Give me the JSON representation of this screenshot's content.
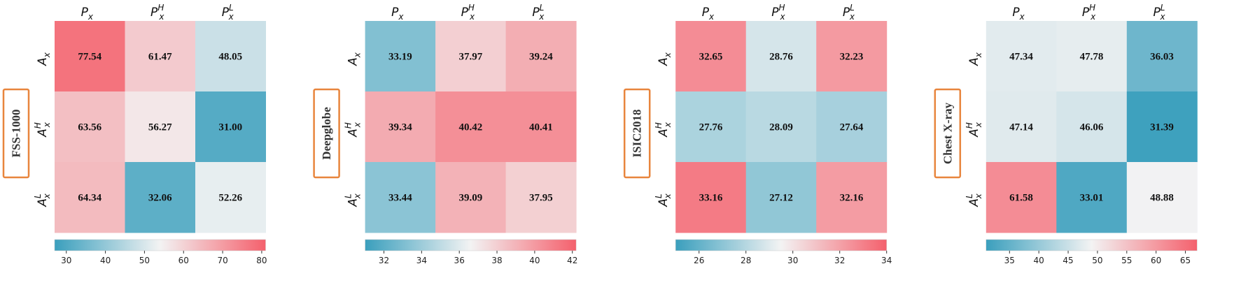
{
  "chart_data": [
    {
      "type": "heatmap",
      "panel_label": "FSS-1000",
      "x_categories": [
        [
          "P",
          "x",
          ""
        ],
        [
          "P",
          "x",
          "H"
        ],
        [
          "P",
          "x",
          "L"
        ]
      ],
      "y_categories": [
        [
          "A",
          "x",
          ""
        ],
        [
          "A",
          "x",
          "H"
        ],
        [
          "A",
          "x",
          "L"
        ]
      ],
      "values": [
        [
          77.54,
          61.47,
          48.05
        ],
        [
          63.56,
          56.27,
          31.0
        ],
        [
          64.34,
          32.06,
          52.26
        ]
      ],
      "colorbar": {
        "vmin": 27,
        "vmax": 81,
        "ticks": [
          30,
          40,
          50,
          60,
          70,
          80
        ]
      }
    },
    {
      "type": "heatmap",
      "panel_label": "Deepglobe",
      "x_categories": [
        [
          "P",
          "x",
          ""
        ],
        [
          "P",
          "x",
          "H"
        ],
        [
          "P",
          "x",
          "L"
        ]
      ],
      "y_categories": [
        [
          "A",
          "x",
          ""
        ],
        [
          "A",
          "x",
          "H"
        ],
        [
          "A",
          "x",
          "L"
        ]
      ],
      "values": [
        [
          33.19,
          37.97,
          39.24
        ],
        [
          39.34,
          40.42,
          40.41
        ],
        [
          33.44,
          39.09,
          37.95
        ]
      ],
      "colorbar": {
        "vmin": 31,
        "vmax": 42.2,
        "ticks": [
          32,
          34,
          36,
          38,
          40,
          42
        ]
      }
    },
    {
      "type": "heatmap",
      "panel_label": "ISIC2018",
      "x_categories": [
        [
          "P",
          "x",
          ""
        ],
        [
          "P",
          "x",
          "H"
        ],
        [
          "P",
          "x",
          "L"
        ]
      ],
      "y_categories": [
        [
          "A",
          "x",
          ""
        ],
        [
          "A",
          "x",
          "H"
        ],
        [
          "A",
          "x",
          "L"
        ]
      ],
      "values": [
        [
          32.65,
          28.76,
          32.23
        ],
        [
          27.76,
          28.09,
          27.64
        ],
        [
          33.16,
          27.12,
          32.16
        ]
      ],
      "colorbar": {
        "vmin": 25,
        "vmax": 34,
        "ticks": [
          26,
          28,
          30,
          32,
          34
        ]
      }
    },
    {
      "type": "heatmap",
      "panel_label": "Chest X-ray",
      "x_categories": [
        [
          "P",
          "x",
          ""
        ],
        [
          "P",
          "x",
          "H"
        ],
        [
          "P",
          "x",
          "L"
        ]
      ],
      "y_categories": [
        [
          "A",
          "x",
          ""
        ],
        [
          "A",
          "x",
          "H"
        ],
        [
          "A",
          "x",
          "L"
        ]
      ],
      "values": [
        [
          47.34,
          47.78,
          36.03
        ],
        [
          47.14,
          46.06,
          31.39
        ],
        [
          61.58,
          33.01,
          48.88
        ]
      ],
      "colorbar": {
        "vmin": 31,
        "vmax": 67,
        "ticks": [
          35,
          40,
          45,
          50,
          55,
          60,
          65
        ]
      }
    }
  ],
  "colors": {
    "low": "#3a9fbd",
    "mid": "#f3f3f3",
    "high": "#f4606c",
    "label_box_border": "#e8853d",
    "value_text": "#111111"
  }
}
